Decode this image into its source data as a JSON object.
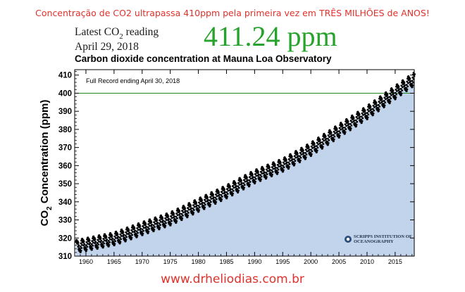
{
  "headline": "Concentração  de CO2 ultrapassa  410ppm pela primeira vez em TRÊS MILHÕES de ANOS!",
  "reading": {
    "label_prefix": "Latest CO",
    "label_sub": "2",
    "label_suffix": " reading",
    "date": "April 29, 2018",
    "value": "411.24 ppm"
  },
  "footer_url": "www.drheliodias.com.br",
  "colors": {
    "headline": "#e0312b",
    "ppm_value": "#27a22d",
    "fill": "#c2d4ec",
    "dots": "#000000",
    "reference_line": "#1e8a1e"
  },
  "chart_data": {
    "type": "scatter",
    "title": "Carbon dioxide concentration at Mauna Loa Observatory",
    "annotation": "Full Record ending April 30, 2018",
    "ylabel_prefix": "CO",
    "ylabel_sub": "2",
    "ylabel_suffix": " Concentration (ppm)",
    "xlim": [
      1958,
      2018.4
    ],
    "ylim": [
      310,
      413
    ],
    "xticks": [
      1960,
      1965,
      1970,
      1975,
      1980,
      1985,
      1990,
      1995,
      2000,
      2005,
      2010,
      2015
    ],
    "yticks": [
      310,
      320,
      330,
      340,
      350,
      360,
      370,
      380,
      390,
      400,
      410
    ],
    "reference_line": 400,
    "grid": false,
    "logo_text": "SCRIPPS INSTITUTION OF OCEANOGRAPHY",
    "trend": [
      {
        "x": 1958.2,
        "y": 315.7
      },
      {
        "x": 1960,
        "y": 316.9
      },
      {
        "x": 1965,
        "y": 320.0
      },
      {
        "x": 1970,
        "y": 325.7
      },
      {
        "x": 1975,
        "y": 331.1
      },
      {
        "x": 1980,
        "y": 338.7
      },
      {
        "x": 1985,
        "y": 346.1
      },
      {
        "x": 1990,
        "y": 354.4
      },
      {
        "x": 1995,
        "y": 360.8
      },
      {
        "x": 2000,
        "y": 369.6
      },
      {
        "x": 2005,
        "y": 379.8
      },
      {
        "x": 2010,
        "y": 389.9
      },
      {
        "x": 2015,
        "y": 401.0
      },
      {
        "x": 2018.3,
        "y": 408.3
      }
    ],
    "seasonal_amplitude": 3.2
  }
}
